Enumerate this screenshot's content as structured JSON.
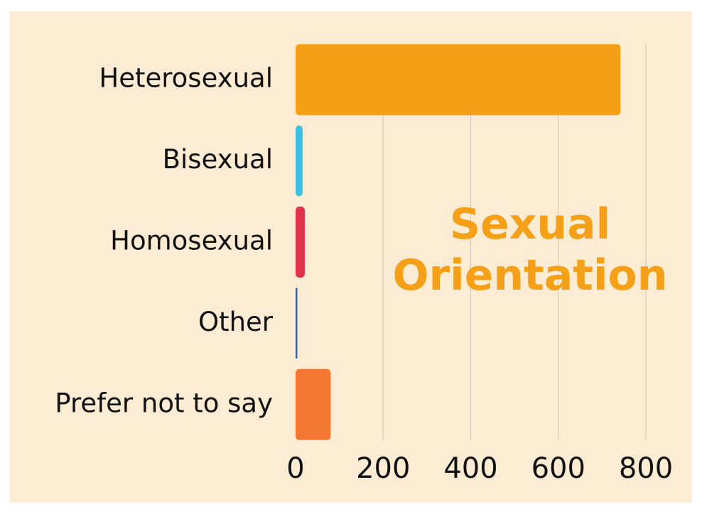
{
  "chart_data": {
    "type": "barh",
    "title": "Sexual Orientation",
    "categories": [
      "Heterosexual",
      "Bisexual",
      "Homosexual",
      "Other",
      "Prefer not to say"
    ],
    "values": [
      742,
      16,
      21,
      4,
      80
    ],
    "colors": [
      "#f5a016",
      "#3fbfe1",
      "#e0334b",
      "#3a5fa0",
      "#f27731"
    ],
    "xlim": [
      0,
      800
    ],
    "xticks": [
      0,
      200,
      400,
      600,
      800
    ],
    "grid": true
  }
}
